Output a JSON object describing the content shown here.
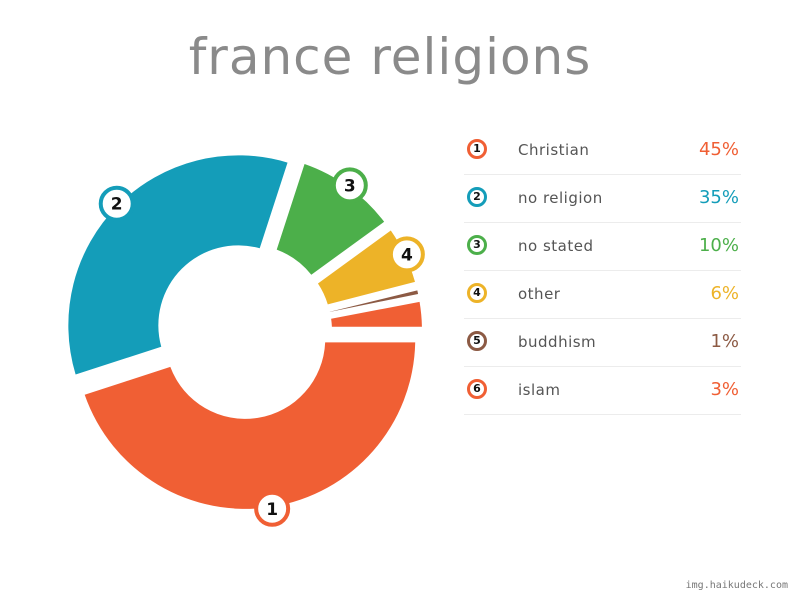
{
  "chart_data": {
    "type": "pie",
    "title": "france religions",
    "categories": [
      "Christian",
      "no religion",
      "no stated",
      "other",
      "buddhism",
      "islam"
    ],
    "values": [
      45,
      35,
      10,
      6,
      1,
      3
    ],
    "value_labels": [
      "45%",
      "35%",
      "10%",
      "6%",
      "1%",
      "3%"
    ],
    "markers": [
      "1",
      "2",
      "3",
      "4",
      "5",
      "6"
    ],
    "colors": [
      "#f05f34",
      "#149db9",
      "#4caf4a",
      "#edb328",
      "#8c5a44",
      "#f05f34"
    ],
    "donut": true,
    "legend": "right"
  },
  "credit": "img.haikudeck.com"
}
